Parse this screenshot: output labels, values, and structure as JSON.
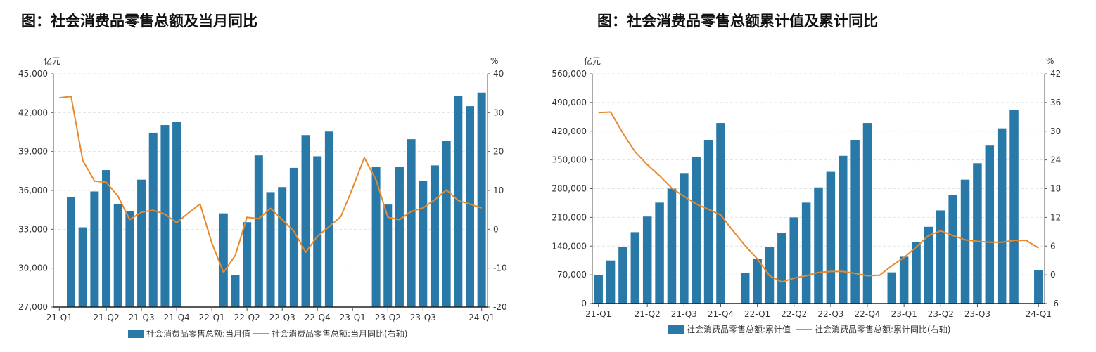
{
  "charts": [
    {
      "title": "图：社会消费品零售总额及当月同比",
      "chart_data": {
        "type": "bar+line",
        "left_unit": "亿元",
        "right_unit": "%",
        "ylim_left": [
          27000,
          45000
        ],
        "yticks_left": [
          27000,
          30000,
          33000,
          36000,
          39000,
          42000,
          45000
        ],
        "ytick_labels_left": [
          "27,000",
          "30,000",
          "33,000",
          "36,000",
          "39,000",
          "42,000",
          "45,000"
        ],
        "ylim_right": [
          -20,
          40
        ],
        "yticks_right": [
          -20,
          -10,
          0,
          10,
          20,
          30,
          40
        ],
        "ytick_labels_right": [
          "-20",
          "-10",
          "0",
          "10",
          "20",
          "30",
          "40"
        ],
        "x_tick_labels": [
          "21-Q1",
          "21-Q2",
          "21-Q3",
          "21-Q4",
          "22-Q1",
          "22-Q2",
          "22-Q3",
          "22-Q4",
          "23-Q1",
          "23-Q2",
          "23-Q3",
          "24-Q1"
        ],
        "x_tick_positions": [
          0,
          4,
          7,
          10,
          13,
          16,
          19,
          22,
          25,
          28,
          31,
          36
        ],
        "x_count": 37,
        "bar_series": {
          "name": "社会消费品零售总额:当月值",
          "color": "#2878a8",
          "values": [
            null,
            35480,
            33150,
            35920,
            37570,
            34930,
            34390,
            36830,
            40450,
            41040,
            41270,
            null,
            null,
            null,
            34230,
            29480,
            33550,
            38700,
            35870,
            36260,
            37740,
            40270,
            38630,
            40540,
            null,
            null,
            null,
            37820,
            34910,
            37800,
            39950,
            36760,
            37930,
            39800,
            43310,
            42500,
            43550
          ]
        },
        "line_series": {
          "name": "社会消费品零售总额:当月同比(右轴)",
          "color": "#e8892b",
          "values": [
            33.8,
            34.2,
            17.7,
            12.4,
            12.1,
            8.5,
            2.5,
            4.4,
            4.9,
            3.9,
            1.7,
            4.2,
            6.5,
            -3.5,
            -11.1,
            -6.7,
            3.1,
            2.7,
            5.4,
            2.5,
            -0.5,
            -5.9,
            -1.8,
            0.7,
            3.3,
            10.6,
            18.4,
            12.7,
            3.1,
            2.5,
            4.6,
            5.5,
            7.6,
            10.1,
            7.4,
            6.5,
            5.5
          ]
        }
      }
    },
    {
      "title": "图：社会消费品零售总额累计值及累计同比",
      "chart_data": {
        "type": "bar+line",
        "left_unit": "亿元",
        "right_unit": "%",
        "ylim_left": [
          0,
          560000
        ],
        "yticks_left": [
          0,
          70000,
          140000,
          210000,
          280000,
          350000,
          420000,
          490000,
          560000
        ],
        "ytick_labels_left": [
          "0",
          "70,000",
          "140,000",
          "210,000",
          "280,000",
          "350,000",
          "420,000",
          "490,000",
          "560,000"
        ],
        "ylim_right": [
          -6,
          42
        ],
        "yticks_right": [
          -6,
          0,
          6,
          12,
          18,
          24,
          30,
          36,
          42
        ],
        "ytick_labels_right": [
          "-6",
          "0",
          "6",
          "12",
          "18",
          "24",
          "30",
          "36",
          "42"
        ],
        "x_tick_labels": [
          "21-Q1",
          "21-Q2",
          "21-Q3",
          "21-Q4",
          "22-Q1",
          "22-Q2",
          "22-Q3",
          "22-Q4",
          "23-Q1",
          "23-Q2",
          "23-Q3",
          "24-Q1"
        ],
        "x_tick_positions": [
          0,
          4,
          7,
          10,
          13,
          16,
          19,
          22,
          25,
          28,
          31,
          36
        ],
        "x_count": 37,
        "bar_series": {
          "name": "社会消费品零售总额:累计值",
          "color": "#2878a8",
          "values": [
            70000,
            105000,
            138000,
            174000,
            212000,
            246000,
            280000,
            318000,
            357000,
            399000,
            440000,
            null,
            74000,
            109000,
            138000,
            172000,
            210000,
            246000,
            283000,
            321000,
            360000,
            399000,
            440000,
            null,
            76000,
            114000,
            150000,
            187000,
            227000,
            264000,
            302000,
            342000,
            385000,
            427000,
            471000,
            null,
            81000
          ]
        },
        "line_series": {
          "name": "社会消费品零售总额:累计同比(右轴)",
          "color": "#e8892b",
          "values": [
            33.9,
            34.0,
            29.6,
            25.7,
            23.0,
            20.7,
            18.1,
            16.4,
            14.8,
            13.7,
            12.5,
            9.2,
            6.1,
            3.3,
            -0.2,
            -1.5,
            -0.7,
            -0.2,
            0.5,
            0.7,
            0.7,
            0.3,
            -0.2,
            -0.1,
            1.9,
            3.6,
            5.8,
            8.2,
            9.2,
            8.2,
            7.3,
            7.0,
            6.8,
            6.8,
            7.2,
            7.2,
            5.6
          ]
        }
      }
    }
  ]
}
